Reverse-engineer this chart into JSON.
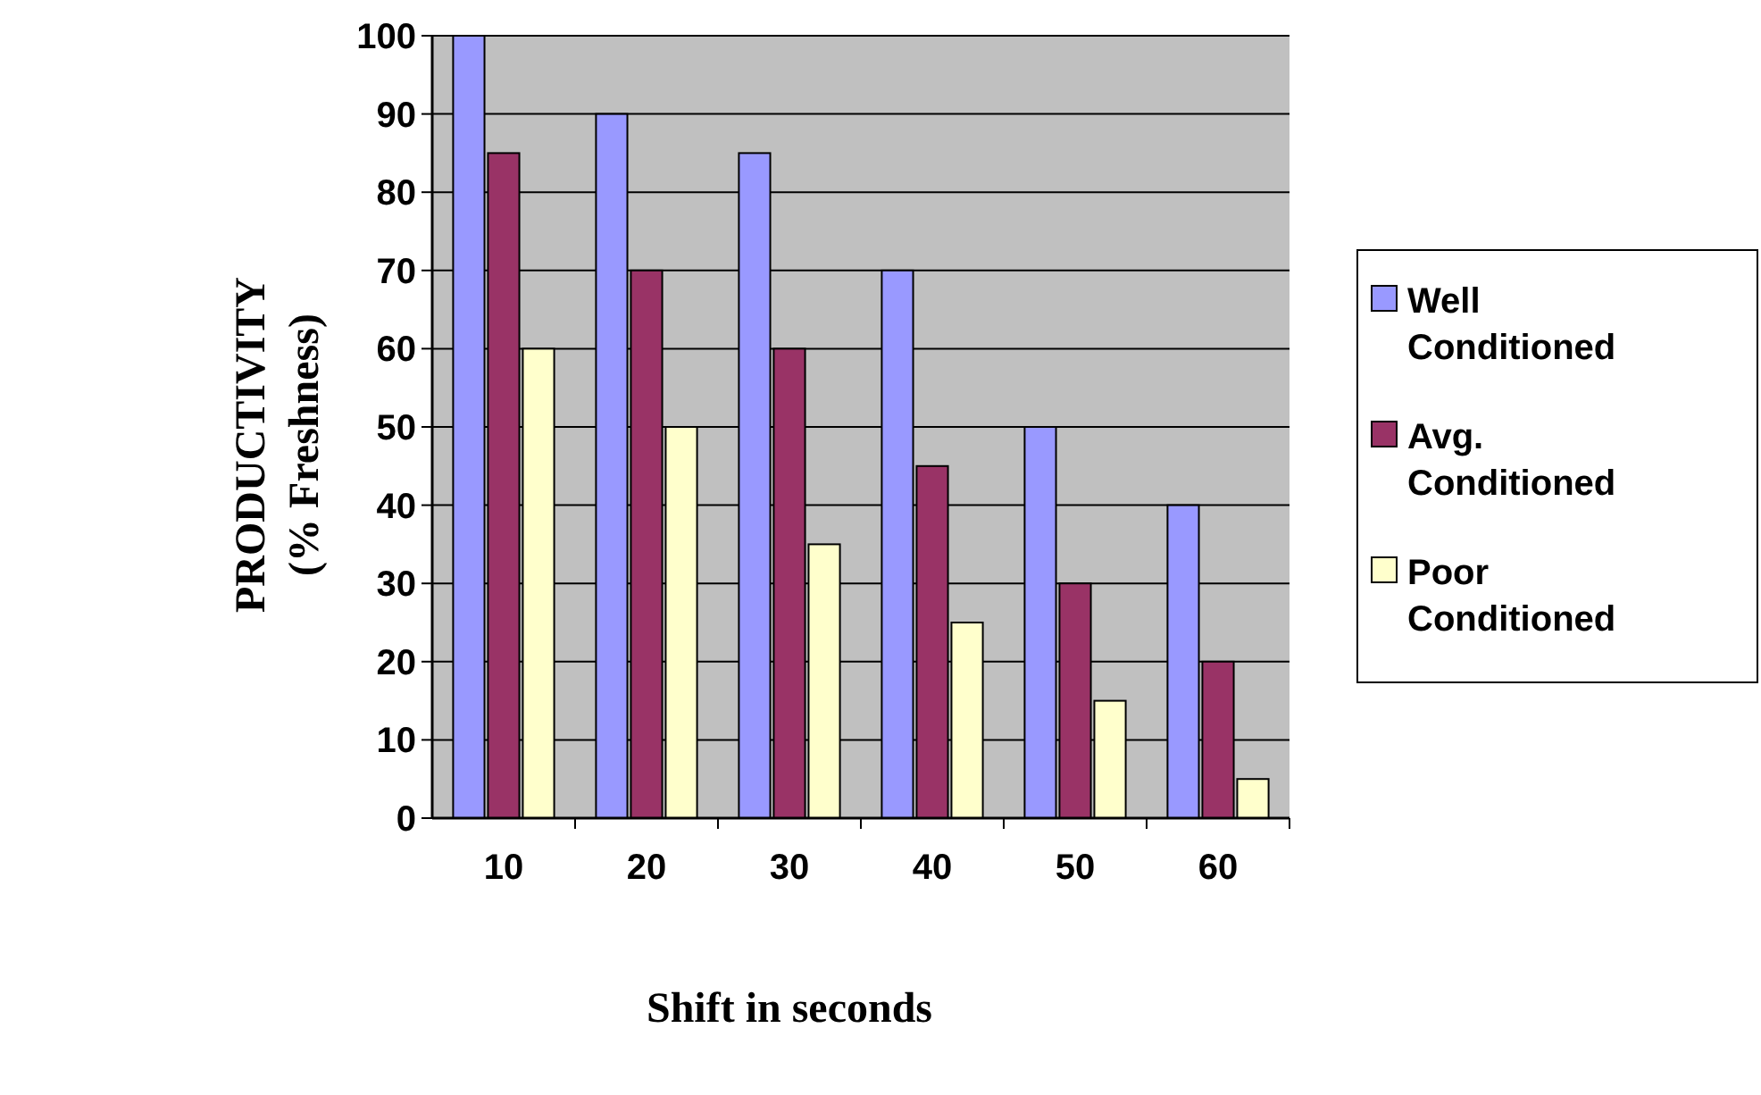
{
  "chart_data": {
    "type": "bar",
    "xlabel": "Shift in seconds",
    "ylabel": "PRODUCTIVITY\n(% Freshness)",
    "categories": [
      "10",
      "20",
      "30",
      "40",
      "50",
      "60"
    ],
    "series": [
      {
        "name": "Well Conditioned",
        "color": "#9999ff",
        "values": [
          100,
          90,
          85,
          70,
          50,
          40
        ]
      },
      {
        "name": "Avg. Conditioned",
        "color": "#993366",
        "values": [
          85,
          70,
          60,
          45,
          30,
          20
        ]
      },
      {
        "name": "Poor Conditioned",
        "color": "#ffffcc",
        "values": [
          60,
          50,
          35,
          25,
          15,
          5
        ]
      }
    ],
    "ylim": [
      0,
      100
    ],
    "yticks": [
      0,
      10,
      20,
      30,
      40,
      50,
      60,
      70,
      80,
      90,
      100
    ],
    "grid": "y",
    "legend": "right"
  }
}
